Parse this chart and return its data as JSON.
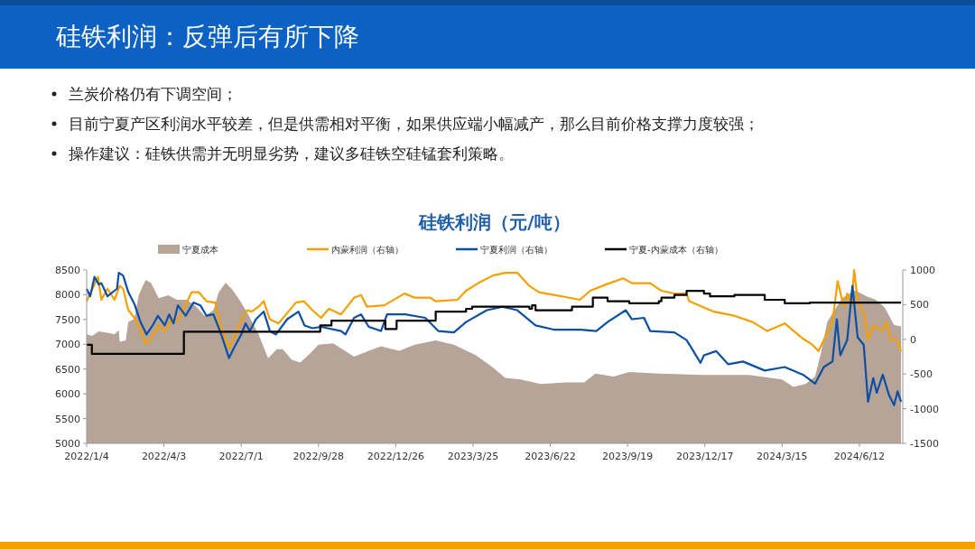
{
  "chart_data": {
    "type": "line",
    "title": "硅铁利润：反弹后有所下降",
    "subtitle": "硅铁利润（元/吨）",
    "annotations": [
      "兰炭价格仍有下调空间；",
      "目前宁夏产区利润水平较差，但是供需相对平衡，如果供应端小幅减产，那么目前价格支撑力度较强；",
      "操作建议：硅铁供需并无明显劣势，建议多硅铁空硅锰套利策略。"
    ],
    "xlim": [
      "2022-01-04",
      "2024-08-01"
    ],
    "xticks": [
      {
        "value": "2022-01-04",
        "label": "2022/1/4"
      },
      {
        "value": "2022-04-03",
        "label": "2022/4/3"
      },
      {
        "value": "2022-07-01",
        "label": "2022/7/1"
      },
      {
        "value": "2022-09-28",
        "label": "2022/9/28"
      },
      {
        "value": "2022-12-26",
        "label": "2022/12/26"
      },
      {
        "value": "2023-03-25",
        "label": "2023/3/25"
      },
      {
        "value": "2023-06-22",
        "label": "2023/6/22"
      },
      {
        "value": "2023-09-19",
        "label": "2023/9/19"
      },
      {
        "value": "2023-12-17",
        "label": "2023/12/17"
      },
      {
        "value": "2024-03-15",
        "label": "2024/3/15"
      },
      {
        "value": "2024-06-12",
        "label": "2024/6/12"
      }
    ],
    "ylim": [
      5000,
      8500
    ],
    "yticks": [
      5000,
      5500,
      6000,
      6500,
      7000,
      7500,
      8000,
      8500
    ],
    "y2lim": [
      -1500,
      1000
    ],
    "y2ticks": [
      -1500,
      -1000,
      -500,
      0,
      500,
      1000
    ],
    "legend": "top",
    "grid": false,
    "series": [
      {
        "name": "宁夏成本",
        "type": "area",
        "color": "#b5a497",
        "x": [
          "2022-01-04",
          "2022-01-10",
          "2022-01-18",
          "2022-01-29",
          "2022-02-05",
          "2022-02-10",
          "2022-02-11",
          "2022-02-18",
          "2022-02-21",
          "2022-02-28",
          "2022-03-05",
          "2022-03-13",
          "2022-03-19",
          "2022-03-28",
          "2022-04-08",
          "2022-04-18",
          "2022-04-29",
          "2022-05-09",
          "2022-05-20",
          "2022-05-30",
          "2022-06-05",
          "2022-06-13",
          "2022-06-20",
          "2022-06-30",
          "2022-07-10",
          "2022-07-21",
          "2022-08-01",
          "2022-08-11",
          "2022-08-18",
          "2022-08-28",
          "2022-09-07",
          "2022-09-18",
          "2022-09-28",
          "2022-10-15",
          "2022-11-08",
          "2022-11-25",
          "2022-12-09",
          "2022-12-30",
          "2023-01-17",
          "2023-02-10",
          "2023-03-03",
          "2023-03-28",
          "2023-04-17",
          "2023-05-01",
          "2023-05-19",
          "2023-06-11",
          "2023-07-10",
          "2023-07-31",
          "2023-08-13",
          "2023-09-03",
          "2023-09-21",
          "2023-10-25",
          "2023-12-16",
          "2024-02-06",
          "2024-03-15",
          "2024-03-28",
          "2024-04-11",
          "2024-04-22",
          "2024-04-29",
          "2024-05-06",
          "2024-05-23",
          "2024-06-07",
          "2024-06-21",
          "2024-07-01",
          "2024-07-11",
          "2024-07-22",
          "2024-07-30"
        ],
        "values": [
          7200,
          7170,
          7260,
          7230,
          7200,
          7290,
          7050,
          7080,
          7450,
          7510,
          8000,
          8300,
          8240,
          7930,
          7990,
          7900,
          7900,
          7780,
          7570,
          7690,
          8050,
          8240,
          8120,
          7870,
          7570,
          7200,
          6720,
          6900,
          6900,
          6690,
          6630,
          6810,
          6990,
          7020,
          6750,
          6870,
          6960,
          6870,
          6990,
          7080,
          6990,
          6780,
          6530,
          6320,
          6290,
          6200,
          6230,
          6230,
          6410,
          6350,
          6440,
          6410,
          6380,
          6380,
          6290,
          6140,
          6200,
          6350,
          6840,
          7450,
          7930,
          8090,
          7960,
          7900,
          7750,
          7390,
          7360
        ]
      },
      {
        "name": "内蒙利润（右轴）",
        "axis": "y2",
        "color": "#f5a000",
        "x": [
          "2022-01-04",
          "2022-01-17",
          "2022-01-21",
          "2022-01-28",
          "2022-02-05",
          "2022-02-11",
          "2022-02-15",
          "2022-02-21",
          "2022-02-28",
          "2022-03-06",
          "2022-03-13",
          "2022-03-20",
          "2022-03-28",
          "2022-04-04",
          "2022-04-12",
          "2022-04-19",
          "2022-04-25",
          "2022-05-05",
          "2022-05-13",
          "2022-05-22",
          "2022-06-01",
          "2022-06-08",
          "2022-06-17",
          "2022-06-23",
          "2022-07-01",
          "2022-07-08",
          "2022-07-13",
          "2022-07-21",
          "2022-07-27",
          "2022-08-03",
          "2022-08-13",
          "2022-08-23",
          "2022-09-02",
          "2022-09-11",
          "2022-09-21",
          "2022-10-01",
          "2022-10-10",
          "2022-10-24",
          "2022-11-08",
          "2022-11-16",
          "2022-11-23",
          "2022-12-13",
          "2023-01-05",
          "2023-01-17",
          "2023-02-04",
          "2023-02-10",
          "2023-03-07",
          "2023-03-17",
          "2023-03-31",
          "2023-04-17",
          "2023-05-01",
          "2023-05-15",
          "2023-05-29",
          "2023-06-09",
          "2023-06-26",
          "2023-07-14",
          "2023-07-26",
          "2023-08-07",
          "2023-08-25",
          "2023-09-14",
          "2023-09-24",
          "2023-10-15",
          "2023-10-28",
          "2023-11-12",
          "2023-11-26",
          "2023-11-29",
          "2023-12-14",
          "2023-12-27",
          "2024-01-20",
          "2024-02-10",
          "2024-02-27",
          "2024-03-18",
          "2024-04-08",
          "2024-04-19",
          "2024-04-26",
          "2024-05-02",
          "2024-05-12",
          "2024-05-18",
          "2024-05-25",
          "2024-05-29",
          "2024-06-03",
          "2024-06-06",
          "2024-06-10",
          "2024-06-17",
          "2024-06-22",
          "2024-06-28",
          "2024-07-08",
          "2024-07-13",
          "2024-07-18",
          "2024-07-25",
          "2024-07-30"
        ],
        "values": [
          550,
          900,
          570,
          730,
          570,
          770,
          730,
          420,
          310,
          160,
          -60,
          30,
          200,
          120,
          290,
          270,
          420,
          680,
          680,
          550,
          530,
          160,
          -120,
          30,
          270,
          420,
          400,
          470,
          550,
          290,
          230,
          380,
          530,
          550,
          420,
          310,
          440,
          360,
          600,
          640,
          470,
          490,
          660,
          600,
          600,
          550,
          570,
          700,
          810,
          920,
          960,
          960,
          770,
          680,
          640,
          600,
          570,
          700,
          790,
          880,
          810,
          810,
          700,
          660,
          660,
          550,
          470,
          400,
          340,
          250,
          120,
          230,
          10,
          -80,
          -170,
          -10,
          250,
          840,
          470,
          660,
          510,
          1000,
          570,
          380,
          0,
          200,
          120,
          250,
          0,
          -10,
          -170
        ]
      },
      {
        "name": "宁夏利润（右轴）",
        "axis": "y2",
        "color": "#0d4fa3",
        "x": [
          "2022-01-04",
          "2022-01-08",
          "2022-01-13",
          "2022-01-18",
          "2022-01-21",
          "2022-01-28",
          "2022-02-08",
          "2022-02-10",
          "2022-02-15",
          "2022-02-21",
          "2022-02-28",
          "2022-03-07",
          "2022-03-14",
          "2022-03-21",
          "2022-03-27",
          "2022-04-04",
          "2022-04-09",
          "2022-04-14",
          "2022-04-19",
          "2022-04-28",
          "2022-05-07",
          "2022-05-15",
          "2022-05-22",
          "2022-05-30",
          "2022-06-08",
          "2022-06-17",
          "2022-06-22",
          "2022-07-01",
          "2022-07-06",
          "2022-07-11",
          "2022-07-18",
          "2022-07-27",
          "2022-08-03",
          "2022-08-10",
          "2022-08-23",
          "2022-09-05",
          "2022-09-12",
          "2022-09-21",
          "2022-10-01",
          "2022-10-24",
          "2022-10-29",
          "2022-11-08",
          "2022-11-16",
          "2022-11-25",
          "2022-12-09",
          "2022-12-16",
          "2023-01-06",
          "2023-01-29",
          "2023-02-13",
          "2023-03-03",
          "2023-03-17",
          "2023-04-10",
          "2023-04-28",
          "2023-05-15",
          "2023-06-05",
          "2023-06-26",
          "2023-07-27",
          "2023-08-14",
          "2023-08-27",
          "2023-09-17",
          "2023-09-24",
          "2023-10-08",
          "2023-10-15",
          "2023-11-12",
          "2023-11-26",
          "2023-12-12",
          "2023-12-16",
          "2023-12-30",
          "2024-01-13",
          "2024-01-30",
          "2024-02-24",
          "2024-03-18",
          "2024-04-08",
          "2024-04-22",
          "2024-05-02",
          "2024-05-12",
          "2024-05-17",
          "2024-05-21",
          "2024-05-29",
          "2024-06-04",
          "2024-06-10",
          "2024-06-17",
          "2024-06-22",
          "2024-06-28",
          "2024-07-02",
          "2024-07-09",
          "2024-07-16",
          "2024-07-22",
          "2024-07-26",
          "2024-07-30"
        ],
        "values": [
          730,
          620,
          900,
          790,
          810,
          620,
          730,
          960,
          920,
          680,
          510,
          250,
          70,
          200,
          340,
          200,
          360,
          230,
          490,
          340,
          530,
          490,
          340,
          360,
          70,
          -270,
          -140,
          70,
          230,
          120,
          290,
          400,
          120,
          70,
          290,
          400,
          200,
          160,
          180,
          120,
          70,
          310,
          360,
          180,
          120,
          360,
          360,
          310,
          120,
          100,
          250,
          420,
          470,
          420,
          200,
          140,
          140,
          120,
          250,
          420,
          290,
          310,
          120,
          100,
          -10,
          -340,
          -230,
          -170,
          -360,
          -320,
          -450,
          -400,
          -510,
          -640,
          -400,
          -320,
          290,
          -230,
          -10,
          770,
          30,
          -80,
          -900,
          -560,
          -770,
          -510,
          -800,
          -950,
          -750,
          -900
        ]
      },
      {
        "name": "宁夏-内蒙成本（右轴）",
        "type": "step",
        "axis": "y2",
        "color": "#000000",
        "x": [
          "2022-01-04",
          "2022-01-10",
          "2022-04-26",
          "2022-09-30",
          "2022-10-13",
          "2022-12-14",
          "2022-12-27",
          "2023-02-10",
          "2023-03-17",
          "2023-03-24",
          "2023-05-29",
          "2023-06-01",
          "2023-06-05",
          "2023-07-17",
          "2023-08-10",
          "2023-08-27",
          "2023-09-21",
          "2023-10-25",
          "2023-10-28",
          "2023-11-12",
          "2023-11-26",
          "2023-12-16",
          "2023-12-23",
          "2024-01-20",
          "2024-02-24",
          "2024-03-18",
          "2024-04-16",
          "2024-07-30"
        ],
        "values": [
          -80,
          -210,
          110,
          200,
          270,
          150,
          270,
          400,
          440,
          470,
          440,
          490,
          420,
          470,
          600,
          550,
          520,
          550,
          600,
          640,
          700,
          660,
          620,
          640,
          570,
          520,
          530,
          530
        ]
      }
    ]
  }
}
